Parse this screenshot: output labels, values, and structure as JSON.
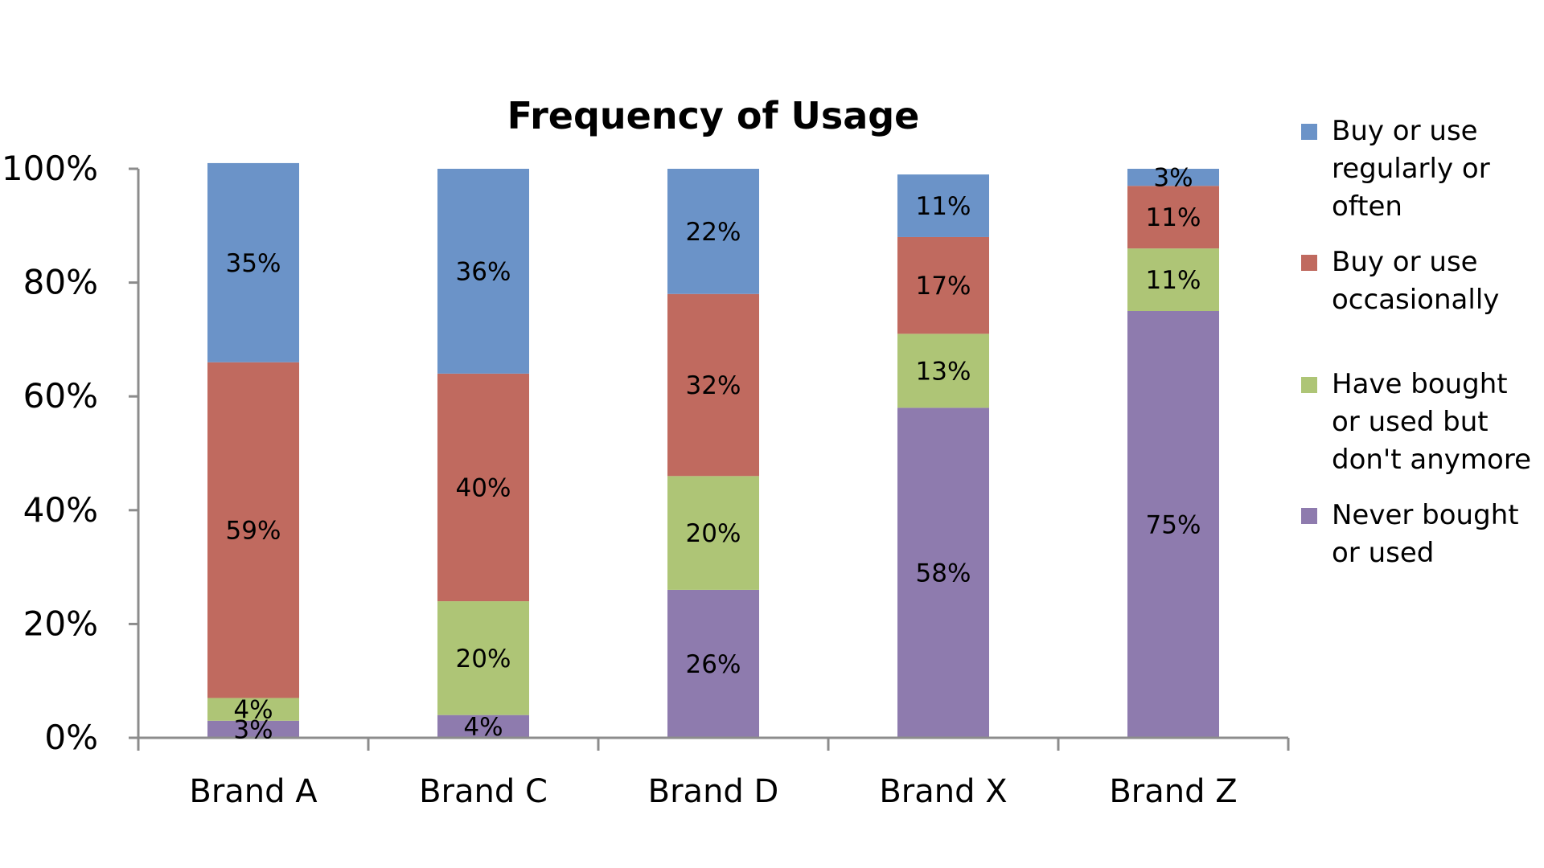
{
  "chart_data": {
    "type": "bar",
    "stacked": true,
    "percent_stacked": true,
    "title": "Frequency of Usage",
    "xlabel": "",
    "ylabel": "",
    "ylim": [
      0,
      100
    ],
    "yticks": [
      "0%",
      "20%",
      "40%",
      "60%",
      "80%",
      "100%"
    ],
    "categories": [
      "Brand A",
      "Brand C",
      "Brand D",
      "Brand X",
      "Brand Z"
    ],
    "series": [
      {
        "name": "Never bought or used",
        "color": "#8E7BAE",
        "values": [
          3,
          4,
          26,
          58,
          75
        ],
        "labels": [
          "3%",
          "4%",
          "26%",
          "58%",
          "75%"
        ]
      },
      {
        "name": "Have bought or used but don't anymore",
        "color": "#AEC576",
        "values": [
          4,
          20,
          20,
          13,
          11
        ],
        "labels": [
          "4%",
          "20%",
          "20%",
          "13%",
          "11%"
        ]
      },
      {
        "name": "Buy or use occasionally",
        "color": "#C06A5F",
        "values": [
          59,
          40,
          32,
          17,
          11
        ],
        "labels": [
          "59%",
          "40%",
          "32%",
          "17%",
          "11%"
        ]
      },
      {
        "name": "Buy or use regularly or often",
        "color": "#6B93C8",
        "values": [
          35,
          36,
          22,
          11,
          3
        ],
        "labels": [
          "35%",
          "36%",
          "22%",
          "11%",
          "3%"
        ]
      }
    ],
    "legend_position": "right",
    "legend_order": [
      "Buy or use regularly or often",
      "Buy or use occasionally",
      "Have bought or used but don't anymore",
      "Never bought or used"
    ],
    "grid": false
  }
}
